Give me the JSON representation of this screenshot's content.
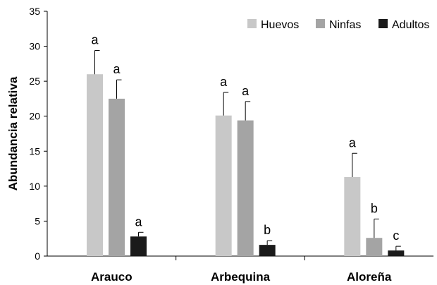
{
  "chart_data": {
    "type": "bar",
    "title": "",
    "xlabel": "",
    "ylabel": "Abundancia relativa",
    "ylim": [
      0,
      35
    ],
    "yticks": [
      0,
      5,
      10,
      15,
      20,
      25,
      30,
      35
    ],
    "grid": false,
    "legend_position": "top-right",
    "categories": [
      "Arauco",
      "Arbequina",
      "Aloreña"
    ],
    "series": [
      {
        "name": "Huevos",
        "color": "#c8c8c8",
        "values": [
          26.0,
          20.1,
          11.3
        ],
        "errors": [
          3.4,
          3.3,
          3.4
        ],
        "labels": [
          "a",
          "a",
          "a"
        ]
      },
      {
        "name": "Ninfas",
        "color": "#a4a4a4",
        "values": [
          22.5,
          19.4,
          2.6
        ],
        "errors": [
          2.7,
          2.7,
          2.7
        ],
        "labels": [
          "a",
          "a",
          "b"
        ]
      },
      {
        "name": "Adultos",
        "color": "#1a1a1a",
        "values": [
          2.8,
          1.6,
          0.8
        ],
        "errors": [
          0.6,
          0.6,
          0.6
        ],
        "labels": [
          "a",
          "b",
          "c"
        ]
      }
    ]
  }
}
